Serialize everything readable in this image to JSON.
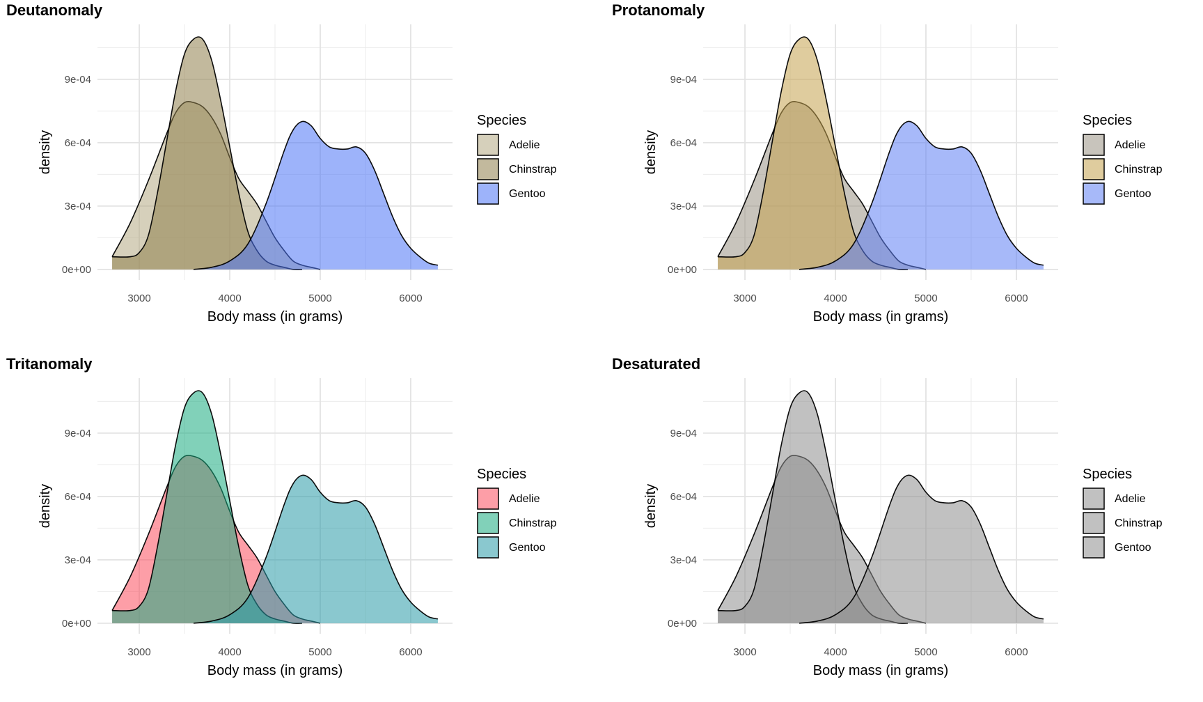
{
  "chart_data": [
    {
      "type": "area",
      "title": "Deutanomaly",
      "xlabel": "Body mass (in grams)",
      "ylabel": "density",
      "xlim": [
        2700,
        6300
      ],
      "ylim": [
        0,
        0.00111
      ],
      "xticks": [
        3000,
        4000,
        5000,
        6000
      ],
      "xtick_labels": [
        "3000",
        "4000",
        "5000",
        "6000"
      ],
      "yticks": [
        0,
        0.0003,
        0.0006,
        0.0009
      ],
      "ytick_labels": [
        "0e+00",
        "3e-04",
        "6e-04",
        "9e-04"
      ],
      "legend_title": "Species",
      "legend_position": "right",
      "grid": true,
      "series": [
        {
          "name": "Adelie",
          "color": "#b4aa84",
          "x": [
            2700,
            2900,
            3100,
            3300,
            3400,
            3500,
            3600,
            3700,
            3800,
            3900,
            4000,
            4100,
            4200,
            4300,
            4400,
            4500,
            4600,
            4700,
            4800,
            4900,
            5000
          ],
          "y": [
            6e-05,
            0.00022,
            0.00042,
            0.00064,
            0.00074,
            0.00079,
            0.00079,
            0.00077,
            0.00072,
            0.00064,
            0.00053,
            0.00043,
            0.00037,
            0.00031,
            0.00023,
            0.00015,
            9e-05,
            4e-05,
            2e-05,
            1e-05,
            0.0
          ]
        },
        {
          "name": "Chinstrap",
          "color": "#8f7f4d",
          "x": [
            2700,
            2900,
            3000,
            3100,
            3200,
            3300,
            3400,
            3500,
            3600,
            3700,
            3800,
            3900,
            4000,
            4100,
            4200,
            4300,
            4400,
            4500,
            4600,
            4700,
            4800
          ],
          "y": [
            6e-05,
            6e-05,
            8e-05,
            0.00016,
            0.00036,
            0.0006,
            0.00084,
            0.00102,
            0.00109,
            0.00109,
            0.00099,
            0.0008,
            0.00058,
            0.00036,
            0.00018,
            9e-05,
            4e-05,
            2e-05,
            1e-05,
            0.0,
            0.0
          ]
        },
        {
          "name": "Gentoo",
          "color": "#4d75f5",
          "x": [
            3600,
            3800,
            4000,
            4200,
            4400,
            4600,
            4700,
            4800,
            4900,
            5000,
            5100,
            5200,
            5300,
            5400,
            5500,
            5600,
            5700,
            5800,
            5900,
            6000,
            6100,
            6200,
            6300
          ],
          "y": [
            0.0,
            1e-05,
            4e-05,
            0.00012,
            0.00031,
            0.00056,
            0.00066,
            0.0007,
            0.00068,
            0.00062,
            0.00058,
            0.00057,
            0.00057,
            0.00058,
            0.00055,
            0.00047,
            0.00036,
            0.00025,
            0.00016,
            0.0001,
            6e-05,
            3e-05,
            2e-05
          ]
        }
      ]
    },
    {
      "type": "area",
      "title": "Protanomaly",
      "xlabel": "Body mass (in grams)",
      "ylabel": "density",
      "xlim": [
        2700,
        6300
      ],
      "ylim": [
        0,
        0.00111
      ],
      "xticks": [
        3000,
        4000,
        5000,
        6000
      ],
      "xtick_labels": [
        "3000",
        "4000",
        "5000",
        "6000"
      ],
      "yticks": [
        0,
        0.0003,
        0.0006,
        0.0009
      ],
      "ytick_labels": [
        "0e+00",
        "3e-04",
        "6e-04",
        "9e-04"
      ],
      "legend_title": "Species",
      "legend_position": "right",
      "grid": true,
      "series": [
        {
          "name": "Adelie",
          "color": "#9a9485",
          "x": [
            2700,
            2900,
            3100,
            3300,
            3400,
            3500,
            3600,
            3700,
            3800,
            3900,
            4000,
            4100,
            4200,
            4300,
            4400,
            4500,
            4600,
            4700,
            4800,
            4900,
            5000
          ],
          "y": [
            6e-05,
            0.00022,
            0.00042,
            0.00064,
            0.00074,
            0.00079,
            0.00079,
            0.00077,
            0.00072,
            0.00064,
            0.00053,
            0.00043,
            0.00037,
            0.00031,
            0.00023,
            0.00015,
            9e-05,
            4e-05,
            2e-05,
            1e-05,
            0.0
          ]
        },
        {
          "name": "Chinstrap",
          "color": "#c4a34e",
          "x": [
            2700,
            2900,
            3000,
            3100,
            3200,
            3300,
            3400,
            3500,
            3600,
            3700,
            3800,
            3900,
            4000,
            4100,
            4200,
            4300,
            4400,
            4500,
            4600,
            4700,
            4800
          ],
          "y": [
            6e-05,
            6e-05,
            8e-05,
            0.00016,
            0.00036,
            0.0006,
            0.00084,
            0.00102,
            0.00109,
            0.00109,
            0.00099,
            0.0008,
            0.00058,
            0.00036,
            0.00018,
            9e-05,
            4e-05,
            2e-05,
            1e-05,
            0.0,
            0.0
          ]
        },
        {
          "name": "Gentoo",
          "color": "#5f80f4",
          "x": [
            3600,
            3800,
            4000,
            4200,
            4400,
            4600,
            4700,
            4800,
            4900,
            5000,
            5100,
            5200,
            5300,
            5400,
            5500,
            5600,
            5700,
            5800,
            5900,
            6000,
            6100,
            6200,
            6300
          ],
          "y": [
            0.0,
            1e-05,
            4e-05,
            0.00012,
            0.00031,
            0.00056,
            0.00066,
            0.0007,
            0.00068,
            0.00062,
            0.00058,
            0.00057,
            0.00057,
            0.00058,
            0.00055,
            0.00047,
            0.00036,
            0.00025,
            0.00016,
            0.0001,
            6e-05,
            3e-05,
            2e-05
          ]
        }
      ]
    },
    {
      "type": "area",
      "title": "Tritanomaly",
      "xlabel": "Body mass (in grams)",
      "ylabel": "density",
      "xlim": [
        2700,
        6300
      ],
      "ylim": [
        0,
        0.00111
      ],
      "xticks": [
        3000,
        4000,
        5000,
        6000
      ],
      "xtick_labels": [
        "3000",
        "4000",
        "5000",
        "6000"
      ],
      "yticks": [
        0,
        0.0003,
        0.0006,
        0.0009
      ],
      "ytick_labels": [
        "0e+00",
        "3e-04",
        "6e-04",
        "9e-04"
      ],
      "legend_title": "Species",
      "legend_position": "right",
      "grid": true,
      "series": [
        {
          "name": "Adelie",
          "color": "#fb4e5e",
          "x": [
            2700,
            2900,
            3100,
            3300,
            3400,
            3500,
            3600,
            3700,
            3800,
            3900,
            4000,
            4100,
            4200,
            4300,
            4400,
            4500,
            4600,
            4700,
            4800,
            4900,
            5000
          ],
          "y": [
            6e-05,
            0.00022,
            0.00042,
            0.00064,
            0.00074,
            0.00079,
            0.00079,
            0.00077,
            0.00072,
            0.00064,
            0.00053,
            0.00043,
            0.00037,
            0.00031,
            0.00023,
            0.00015,
            9e-05,
            4e-05,
            2e-05,
            1e-05,
            0.0
          ]
        },
        {
          "name": "Chinstrap",
          "color": "#1aac7f",
          "x": [
            2700,
            2900,
            3000,
            3100,
            3200,
            3300,
            3400,
            3500,
            3600,
            3700,
            3800,
            3900,
            4000,
            4100,
            4200,
            4300,
            4400,
            4500,
            4600,
            4700,
            4800
          ],
          "y": [
            6e-05,
            6e-05,
            8e-05,
            0.00016,
            0.00036,
            0.0006,
            0.00084,
            0.00102,
            0.00109,
            0.00109,
            0.00099,
            0.0008,
            0.00058,
            0.00036,
            0.00018,
            9e-05,
            4e-05,
            2e-05,
            1e-05,
            0.0,
            0.0
          ]
        },
        {
          "name": "Gentoo",
          "color": "#2a9aa8",
          "x": [
            3600,
            3800,
            4000,
            4200,
            4400,
            4600,
            4700,
            4800,
            4900,
            5000,
            5100,
            5200,
            5300,
            5400,
            5500,
            5600,
            5700,
            5800,
            5900,
            6000,
            6100,
            6200,
            6300
          ],
          "y": [
            0.0,
            1e-05,
            4e-05,
            0.00012,
            0.00031,
            0.00056,
            0.00066,
            0.0007,
            0.00068,
            0.00062,
            0.00058,
            0.00057,
            0.00057,
            0.00058,
            0.00055,
            0.00047,
            0.00036,
            0.00025,
            0.00016,
            0.0001,
            6e-05,
            3e-05,
            2e-05
          ]
        }
      ]
    },
    {
      "type": "area",
      "title": "Desaturated",
      "xlabel": "Body mass (in grams)",
      "ylabel": "density",
      "xlim": [
        2700,
        6300
      ],
      "ylim": [
        0,
        0.00111
      ],
      "xticks": [
        3000,
        4000,
        5000,
        6000
      ],
      "xtick_labels": [
        "3000",
        "4000",
        "5000",
        "6000"
      ],
      "yticks": [
        0,
        0.0003,
        0.0006,
        0.0009
      ],
      "ytick_labels": [
        "0e+00",
        "3e-04",
        "6e-04",
        "9e-04"
      ],
      "legend_title": "Species",
      "legend_position": "right",
      "grid": true,
      "series": [
        {
          "name": "Adelie",
          "color": "#8e8e8e",
          "x": [
            2700,
            2900,
            3100,
            3300,
            3400,
            3500,
            3600,
            3700,
            3800,
            3900,
            4000,
            4100,
            4200,
            4300,
            4400,
            4500,
            4600,
            4700,
            4800,
            4900,
            5000
          ],
          "y": [
            6e-05,
            0.00022,
            0.00042,
            0.00064,
            0.00074,
            0.00079,
            0.00079,
            0.00077,
            0.00072,
            0.00064,
            0.00053,
            0.00043,
            0.00037,
            0.00031,
            0.00023,
            0.00015,
            9e-05,
            4e-05,
            2e-05,
            1e-05,
            0.0
          ]
        },
        {
          "name": "Chinstrap",
          "color": "#8e8e8e",
          "x": [
            2700,
            2900,
            3000,
            3100,
            3200,
            3300,
            3400,
            3500,
            3600,
            3700,
            3800,
            3900,
            4000,
            4100,
            4200,
            4300,
            4400,
            4500,
            4600,
            4700,
            4800
          ],
          "y": [
            6e-05,
            6e-05,
            8e-05,
            0.00016,
            0.00036,
            0.0006,
            0.00084,
            0.00102,
            0.00109,
            0.00109,
            0.00099,
            0.0008,
            0.00058,
            0.00036,
            0.00018,
            9e-05,
            4e-05,
            2e-05,
            1e-05,
            0.0,
            0.0
          ]
        },
        {
          "name": "Gentoo",
          "color": "#8e8e8e",
          "x": [
            3600,
            3800,
            4000,
            4200,
            4400,
            4600,
            4700,
            4800,
            4900,
            5000,
            5100,
            5200,
            5300,
            5400,
            5500,
            5600,
            5700,
            5800,
            5900,
            6000,
            6100,
            6200,
            6300
          ],
          "y": [
            0.0,
            1e-05,
            4e-05,
            0.00012,
            0.00031,
            0.00056,
            0.00066,
            0.0007,
            0.00068,
            0.00062,
            0.00058,
            0.00057,
            0.00057,
            0.00058,
            0.00055,
            0.00047,
            0.00036,
            0.00025,
            0.00016,
            0.0001,
            6e-05,
            3e-05,
            2e-05
          ]
        }
      ]
    }
  ]
}
